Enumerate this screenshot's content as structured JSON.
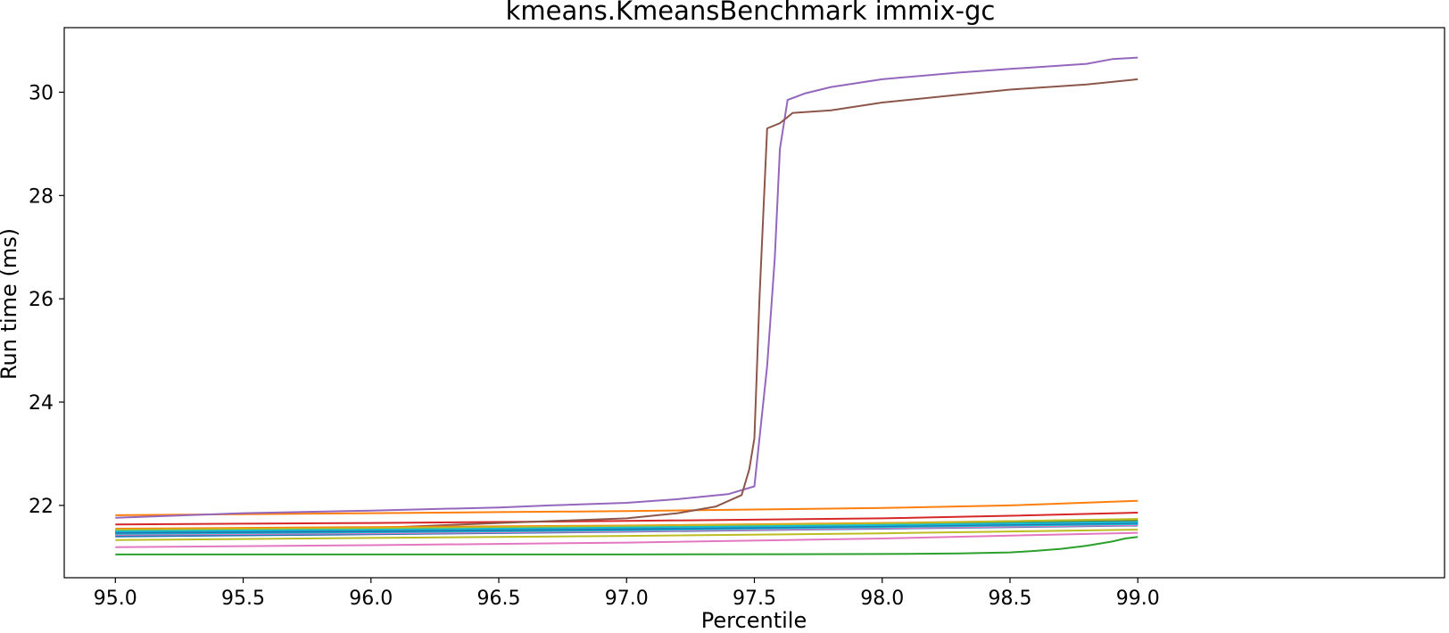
{
  "chart_data": {
    "type": "line",
    "title": "kmeans.KmeansBenchmark immix-gc",
    "xlabel": "Percentile",
    "ylabel": "Run time (ms)",
    "xlim": [
      94.8,
      100.2
    ],
    "ylim": [
      20.6,
      31.25
    ],
    "xticks": [
      95.0,
      95.5,
      96.0,
      96.5,
      97.0,
      97.5,
      98.0,
      98.5,
      99.0
    ],
    "xtick_labels": [
      "95.0",
      "95.5",
      "96.0",
      "96.5",
      "97.0",
      "97.5",
      "98.0",
      "98.5",
      "99.0"
    ],
    "yticks": [
      22,
      24,
      26,
      28,
      30
    ],
    "ytick_labels": [
      "22",
      "24",
      "26",
      "28",
      "30"
    ],
    "grid": false,
    "legend": "none",
    "series": [
      {
        "color": "#1f77b4",
        "x": [
          95.0,
          96.0,
          97.0,
          98.0,
          99.0
        ],
        "y": [
          21.5,
          21.53,
          21.56,
          21.6,
          21.65
        ]
      },
      {
        "color": "#ff7f0e",
        "x": [
          95.0,
          95.5,
          96.0,
          96.5,
          97.0,
          97.5,
          98.0,
          98.5,
          99.0
        ],
        "y": [
          21.81,
          21.83,
          21.85,
          21.87,
          21.89,
          21.92,
          21.95,
          22.0,
          22.09
        ]
      },
      {
        "color": "#2ca02c",
        "x": [
          95.0,
          96.0,
          97.0,
          98.0,
          98.3,
          98.5,
          98.6,
          98.7,
          98.8,
          98.9,
          98.95,
          99.0
        ],
        "y": [
          21.05,
          21.05,
          21.05,
          21.06,
          21.07,
          21.09,
          21.12,
          21.16,
          21.22,
          21.3,
          21.36,
          21.39
        ]
      },
      {
        "color": "#d62728",
        "x": [
          95.0,
          96.0,
          97.0,
          98.0,
          98.5,
          99.0
        ],
        "y": [
          21.63,
          21.66,
          21.7,
          21.75,
          21.8,
          21.86
        ]
      },
      {
        "color": "#9467bd",
        "x": [
          95.0,
          95.5,
          96.0,
          96.5,
          96.7,
          97.0,
          97.2,
          97.4,
          97.5,
          97.52,
          97.55,
          97.58,
          97.6,
          97.63,
          97.7,
          97.8,
          98.0,
          98.3,
          98.5,
          98.8,
          98.9,
          99.0
        ],
        "y": [
          21.76,
          21.85,
          21.9,
          21.96,
          22.0,
          22.05,
          22.12,
          22.22,
          22.37,
          23.3,
          24.7,
          26.8,
          28.9,
          29.85,
          29.98,
          30.1,
          30.25,
          30.38,
          30.45,
          30.55,
          30.64,
          30.67
        ]
      },
      {
        "color": "#8c564b",
        "x": [
          95.0,
          96.0,
          96.5,
          97.0,
          97.2,
          97.35,
          97.45,
          97.48,
          97.5,
          97.52,
          97.55,
          97.6,
          97.65,
          97.8,
          98.0,
          98.3,
          98.5,
          98.8,
          99.0
        ],
        "y": [
          21.42,
          21.56,
          21.66,
          21.75,
          21.85,
          21.98,
          22.2,
          22.7,
          23.3,
          26.0,
          29.3,
          29.4,
          29.6,
          29.65,
          29.8,
          29.95,
          30.05,
          30.15,
          30.25
        ]
      },
      {
        "color": "#e377c2",
        "x": [
          95.0,
          96.0,
          97.0,
          98.0,
          99.0
        ],
        "y": [
          21.19,
          21.23,
          21.28,
          21.36,
          21.47
        ]
      },
      {
        "color": "#7f7f7f",
        "x": [
          95.0,
          96.0,
          97.0,
          98.0,
          99.0
        ],
        "y": [
          21.47,
          21.5,
          21.54,
          21.59,
          21.66
        ]
      },
      {
        "color": "#bcbd22",
        "x": [
          95.0,
          96.0,
          97.0,
          98.0,
          99.0
        ],
        "y": [
          21.33,
          21.37,
          21.41,
          21.46,
          21.53
        ]
      },
      {
        "color": "#17becf",
        "x": [
          95.0,
          96.0,
          97.0,
          98.0,
          99.0
        ],
        "y": [
          21.44,
          21.47,
          21.52,
          21.57,
          21.63
        ]
      },
      {
        "color": "#1f77b4",
        "x": [
          95.0,
          96.0,
          97.0,
          98.0,
          99.0
        ],
        "y": [
          21.4,
          21.44,
          21.49,
          21.55,
          21.61
        ]
      },
      {
        "color": "#ff7f0e",
        "x": [
          95.0,
          96.0,
          97.0,
          98.0,
          99.0
        ],
        "y": [
          21.55,
          21.58,
          21.61,
          21.66,
          21.73
        ]
      },
      {
        "color": "#2ca02c",
        "x": [
          95.0,
          96.0,
          97.0,
          98.0,
          99.0
        ],
        "y": [
          21.52,
          21.55,
          21.58,
          21.63,
          21.7
        ]
      },
      {
        "color": "#d62728",
        "x": [
          95.0,
          96.0,
          97.0,
          98.0,
          99.0
        ],
        "y": [
          21.46,
          21.49,
          21.53,
          21.58,
          21.64
        ]
      },
      {
        "color": "#9467bd",
        "x": [
          95.0,
          96.0,
          97.0,
          98.0,
          99.0
        ],
        "y": [
          21.48,
          21.51,
          21.55,
          21.6,
          21.67
        ]
      },
      {
        "color": "#8c564b",
        "x": [
          95.0,
          96.0,
          97.0,
          98.0,
          99.0
        ],
        "y": [
          21.51,
          21.54,
          21.57,
          21.62,
          21.69
        ]
      },
      {
        "color": "#e377c2",
        "x": [
          95.0,
          96.0,
          97.0,
          98.0,
          99.0
        ],
        "y": [
          21.43,
          21.46,
          21.5,
          21.56,
          21.62
        ]
      },
      {
        "color": "#7f7f7f",
        "x": [
          95.0,
          96.0,
          97.0,
          98.0,
          99.0
        ],
        "y": [
          21.49,
          21.52,
          21.56,
          21.61,
          21.68
        ]
      },
      {
        "color": "#bcbd22",
        "x": [
          95.0,
          96.0,
          97.0,
          98.0,
          99.0
        ],
        "y": [
          21.53,
          21.56,
          21.6,
          21.65,
          21.74
        ]
      },
      {
        "color": "#17becf",
        "x": [
          95.0,
          96.0,
          97.0,
          98.0,
          99.0
        ],
        "y": [
          21.45,
          21.48,
          21.52,
          21.58,
          21.64
        ]
      },
      {
        "color": "#1f77b4",
        "x": [
          95.0,
          96.0,
          97.0,
          98.0,
          99.0
        ],
        "y": [
          21.47,
          21.5,
          21.54,
          21.6,
          21.66
        ]
      },
      {
        "color": "#17becf",
        "x": [
          95.0,
          96.0,
          97.0,
          98.0,
          99.0
        ],
        "y": [
          21.5,
          21.53,
          21.57,
          21.62,
          21.68
        ]
      }
    ]
  }
}
